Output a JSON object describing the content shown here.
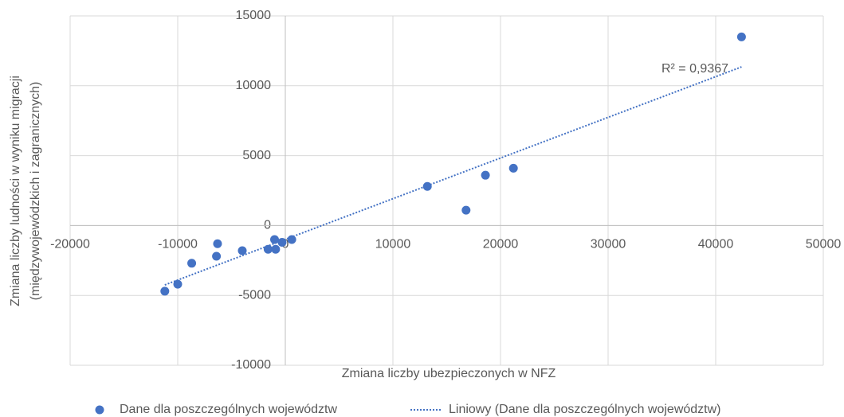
{
  "chart_data": {
    "type": "scatter",
    "xlabel": "Zmiana liczby ubezpieczonych w NFZ",
    "ylabel": [
      "Zmiana liczby ludności w wyniku migracji",
      "(międzywojewódzkich i zagranicznych)"
    ],
    "xlim": [
      -20000,
      50000
    ],
    "ylim": [
      -10000,
      15000
    ],
    "xticks": [
      -20000,
      -10000,
      0,
      10000,
      20000,
      30000,
      40000,
      50000
    ],
    "yticks": [
      -10000,
      -5000,
      0,
      5000,
      10000,
      15000
    ],
    "grid": true,
    "legend": "bottom",
    "series": [
      {
        "name": "Dane dla poszczególnych województw",
        "color": "#4472c4",
        "x": [
          -11200,
          -10000,
          -8700,
          -6300,
          -6400,
          -4000,
          -1600,
          -900,
          -1000,
          -300,
          600,
          13200,
          16800,
          18600,
          21200,
          42400
        ],
        "values": [
          -4700,
          -4200,
          -2700,
          -1300,
          -2200,
          -1800,
          -1700,
          -1700,
          -1000,
          -1200,
          -1000,
          2800,
          1100,
          3600,
          4100,
          13500
        ]
      }
    ],
    "trendline": {
      "name": "Liniowy (Dane dla poszczególnych województw)",
      "color": "#4472c4",
      "x": [
        -11200,
        42400
      ],
      "values": [
        -4250,
        11350
      ],
      "annotation": "R² = 0,9367"
    }
  }
}
